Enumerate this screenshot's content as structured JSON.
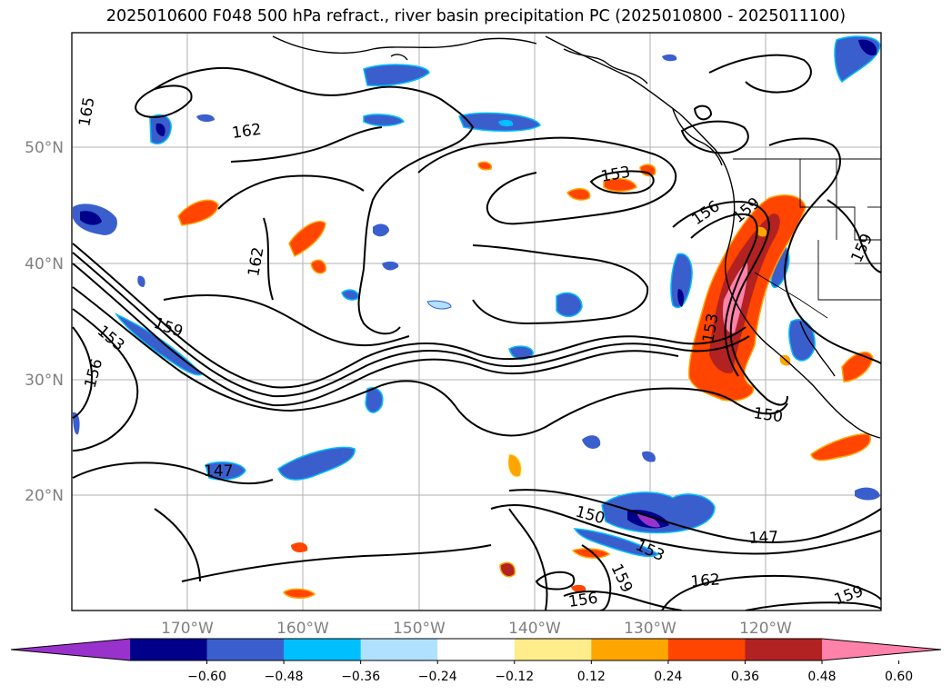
{
  "title": "2025010600 F048 500 hPa refract., river basin precipitation PC (2025010800 - 2025011100)",
  "map": {
    "lat_labels": [
      "50°N",
      "40°N",
      "30°N",
      "20°N"
    ],
    "lon_labels": [
      "170°W",
      "160°W",
      "150°W",
      "140°W",
      "130°W",
      "120°W"
    ],
    "contour_labels": [
      "165",
      "162",
      "162",
      "153",
      "156",
      "159",
      "153",
      "159",
      "153",
      "156",
      "147",
      "150",
      "150",
      "153",
      "159",
      "147",
      "162",
      "156",
      "159",
      "159"
    ]
  },
  "colorbar": {
    "colors": [
      "#9932cc",
      "#00008b",
      "#3a5fcd",
      "#00bfff",
      "#b0e2ff",
      "#ffffff",
      "#ffec8b",
      "#ffa500",
      "#ff4500",
      "#b22222",
      "#ff82ab"
    ],
    "ticks": [
      "−0.60",
      "−0.48",
      "−0.36",
      "−0.24",
      "−0.12",
      "0.12",
      "0.24",
      "0.36",
      "0.48",
      "0.60"
    ]
  }
}
